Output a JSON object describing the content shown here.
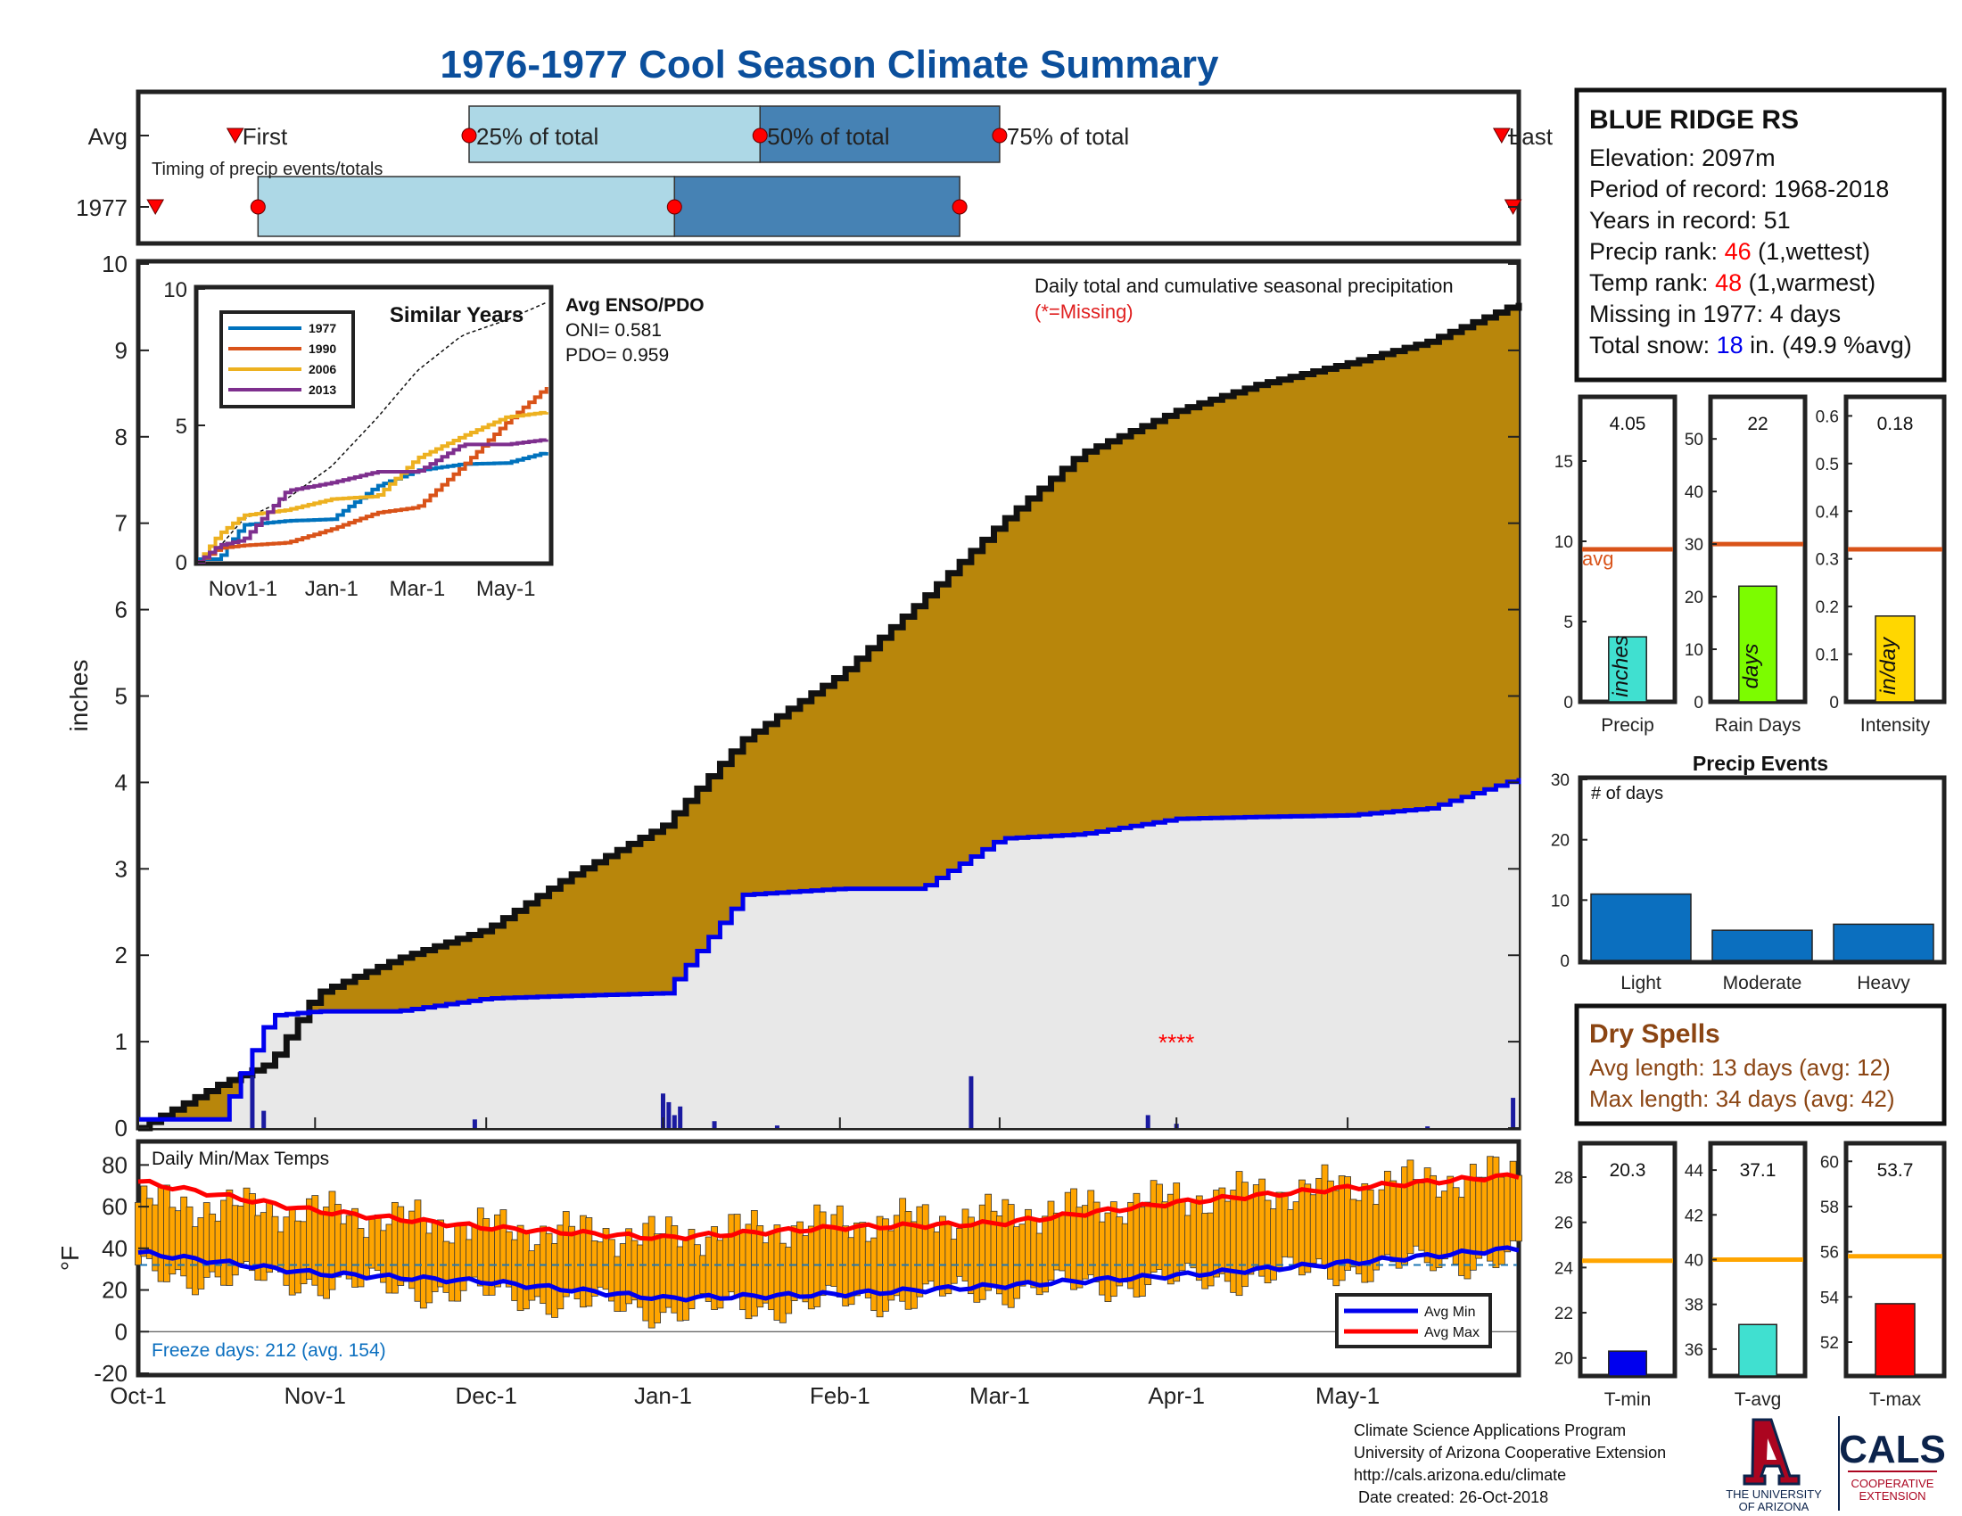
{
  "title": "1976-1977 Cool Season Climate Summary",
  "colors": {
    "title": "#0b4f9c",
    "precip_fill": "#b8860b",
    "avg_fill": "#e8e8e8",
    "avg_line": "#0000ee",
    "light_blue": "#add8e6",
    "steel_blue": "#4682b4",
    "bar_blue": "#0b6fbf",
    "red": "#ff0000",
    "orange_line": "#d95319",
    "gold": "#ffa500"
  },
  "timing": {
    "row_avg": "Avg",
    "row_year": "1977",
    "first_label": "First",
    "last_label": "Last",
    "p25_label": "25% of total",
    "p50_label": "50% of total",
    "p75_label": "75% of total",
    "caption": "Timing of precip events/totals",
    "avg": {
      "first": "1976-10-18",
      "p25": "1976-11-28",
      "p50": "1977-01-18",
      "p75": "1977-03-01",
      "last": "1977-05-28"
    },
    "year": {
      "first": "1976-10-04",
      "p25": "1976-10-22",
      "p50": "1977-01-03",
      "p75": "1977-02-22",
      "last": "1977-05-30"
    }
  },
  "main": {
    "ylabel": "inches",
    "yticks": [
      "0",
      "1",
      "2",
      "3",
      "4",
      "5",
      "6",
      "7",
      "8",
      "9",
      "10"
    ],
    "xticks": [
      "Oct-1",
      "Nov-1",
      "Dec-1",
      "Jan-1",
      "Feb-1",
      "Mar-1",
      "Apr-1",
      "May-1"
    ],
    "note": "Daily total and cumulative seasonal precipitation",
    "missing_note": "(*=Missing)",
    "missing_marker": "****",
    "missing_date": "1977-04-01",
    "enso_title": "Avg ENSO/PDO",
    "oni": "ONI= 0.581",
    "pdo": "PDO= 0.959"
  },
  "chart_data": [
    {
      "type": "area",
      "title": "Daily total and cumulative seasonal precipitation",
      "xlabel": "",
      "ylabel": "inches",
      "ylim": [
        0,
        10
      ],
      "x": [
        "1976-10-01",
        "1976-10-15",
        "1976-10-24",
        "1976-11-01",
        "1976-11-15",
        "1976-12-01",
        "1976-12-15",
        "1977-01-01",
        "1977-01-15",
        "1977-02-01",
        "1977-02-15",
        "1977-03-01",
        "1977-03-15",
        "1977-04-01",
        "1977-04-15",
        "1977-05-01",
        "1977-05-15",
        "1977-05-31"
      ],
      "series": [
        {
          "name": "Avg",
          "values": [
            0.0,
            0.5,
            0.75,
            1.55,
            1.95,
            2.3,
            2.9,
            3.5,
            4.5,
            5.25,
            6.1,
            7.0,
            7.8,
            8.3,
            8.6,
            8.85,
            9.1,
            9.55
          ]
        },
        {
          "name": "1977",
          "values": [
            0.1,
            0.1,
            1.3,
            1.35,
            1.35,
            1.5,
            1.53,
            1.56,
            2.7,
            2.77,
            2.77,
            3.35,
            3.4,
            3.58,
            3.6,
            3.62,
            3.7,
            4.05
          ]
        }
      ],
      "daily_bars": [
        {
          "date": "1976-10-21",
          "value": 0.6
        },
        {
          "date": "1976-10-23",
          "value": 0.2
        },
        {
          "date": "1976-11-29",
          "value": 0.1
        },
        {
          "date": "1977-01-01",
          "value": 0.4
        },
        {
          "date": "1977-01-02",
          "value": 0.3
        },
        {
          "date": "1977-01-03",
          "value": 0.15
        },
        {
          "date": "1977-01-04",
          "value": 0.25
        },
        {
          "date": "1977-01-10",
          "value": 0.08
        },
        {
          "date": "1977-01-21",
          "value": 0.03
        },
        {
          "date": "1977-02-24",
          "value": 0.6
        },
        {
          "date": "1977-03-27",
          "value": 0.15
        },
        {
          "date": "1977-04-01",
          "value": 0.05
        },
        {
          "date": "1977-05-15",
          "value": 0.02
        },
        {
          "date": "1977-05-30",
          "value": 0.35
        }
      ]
    },
    {
      "type": "line",
      "title": "Similar Years",
      "x": [
        "1976-10-01",
        "1976-10-15",
        "1976-11-01",
        "1976-12-01",
        "1977-01-01",
        "1977-02-01",
        "1977-03-01",
        "1977-04-01",
        "1977-05-01",
        "1977-05-31"
      ],
      "ylim": [
        0,
        10
      ],
      "series": [
        {
          "name": "1977",
          "values": [
            0.1,
            0.1,
            1.35,
            1.5,
            1.56,
            2.77,
            3.35,
            3.58,
            3.62,
            4.05
          ]
        },
        {
          "name": "1990",
          "values": [
            0.0,
            0.5,
            0.6,
            0.7,
            1.2,
            1.8,
            2.0,
            3.5,
            5.1,
            6.5
          ]
        },
        {
          "name": "2006",
          "values": [
            0.0,
            1.0,
            1.7,
            1.9,
            2.3,
            2.4,
            3.8,
            4.6,
            5.3,
            5.5
          ]
        },
        {
          "name": "2013",
          "values": [
            0.0,
            0.6,
            0.8,
            2.6,
            2.9,
            3.3,
            3.3,
            4.3,
            4.3,
            4.5
          ]
        }
      ],
      "avg_values": [
        0.0,
        0.5,
        1.55,
        2.3,
        3.5,
        5.25,
        7.0,
        8.3,
        8.85,
        9.55
      ],
      "xticks": [
        "Nov1-1",
        "Jan-1",
        "Mar-1",
        "May-1"
      ],
      "yticks": [
        "0",
        "5",
        "10"
      ]
    },
    {
      "type": "bar",
      "title": "Precip",
      "categories": [
        "Precip"
      ],
      "values": [
        4.05
      ],
      "avg": 9.5,
      "ylim": [
        0,
        19
      ],
      "value_label": "4.05",
      "unit_label": "inches",
      "avg_label": "avg",
      "yticks": [
        "0",
        "5",
        "10",
        "15"
      ]
    },
    {
      "type": "bar",
      "title": "Rain Days",
      "categories": [
        "Rain Days"
      ],
      "values": [
        22
      ],
      "avg": 30,
      "ylim": [
        0,
        58
      ],
      "value_label": "22",
      "unit_label": "days",
      "yticks": [
        "0",
        "10",
        "20",
        "30",
        "40",
        "50"
      ]
    },
    {
      "type": "bar",
      "title": "Intensity",
      "categories": [
        "Intensity"
      ],
      "values": [
        0.18
      ],
      "avg": 0.32,
      "ylim": [
        0,
        0.64
      ],
      "value_label": "0.18",
      "unit_label": "in/day",
      "yticks": [
        "0",
        "0.1",
        "0.2",
        "0.3",
        "0.4",
        "0.5",
        "0.6"
      ]
    },
    {
      "type": "bar",
      "title": "Precip Events",
      "categories": [
        "Light",
        "Moderate",
        "Heavy"
      ],
      "values": [
        11,
        5,
        6
      ],
      "ylim": [
        0,
        30
      ],
      "ylabel": "# of days",
      "yticks": [
        "0",
        "10",
        "20",
        "30"
      ]
    },
    {
      "type": "bar",
      "title": "Daily Min/Max Temps",
      "ylabel": "°F",
      "ylim": [
        -20,
        90
      ],
      "yticks": [
        "80",
        "60",
        "40",
        "20",
        "0",
        "-20"
      ],
      "xticks": [
        "Oct-1",
        "Nov-1",
        "Dec-1",
        "Jan-1",
        "Feb-1",
        "Mar-1",
        "Apr-1",
        "May-1"
      ],
      "x": [
        "1976-10-01",
        "1976-11-01",
        "1976-12-01",
        "1977-01-01",
        "1977-02-01",
        "1977-03-01",
        "1977-04-01",
        "1977-05-01",
        "1977-05-31"
      ],
      "series": [
        {
          "name": "Avg Min",
          "values": [
            38,
            28,
            24,
            16,
            18,
            22,
            27,
            33,
            40
          ]
        },
        {
          "name": "Avg Max",
          "values": [
            72,
            58,
            50,
            45,
            50,
            52,
            62,
            69,
            75
          ]
        }
      ],
      "daily_highs_approx": [
        62,
        58,
        50,
        46,
        52,
        56,
        64,
        70,
        76
      ],
      "daily_lows_approx": [
        28,
        24,
        18,
        10,
        14,
        20,
        24,
        30,
        36
      ],
      "freeze_line": 32,
      "freeze_label": "Freeze days: 212 (avg. 154)"
    },
    {
      "type": "bar",
      "title": "T-min",
      "categories": [
        "T-min"
      ],
      "values": [
        20.3
      ],
      "avg": 24.3,
      "ylim": [
        19.2,
        29.5
      ],
      "value_label": "20.3",
      "yticks": [
        "20",
        "22",
        "24",
        "26",
        "28"
      ]
    },
    {
      "type": "bar",
      "title": "T-avg",
      "categories": [
        "T-avg"
      ],
      "values": [
        37.1
      ],
      "avg": 40.0,
      "ylim": [
        34.8,
        45.2
      ],
      "value_label": "37.1",
      "yticks": [
        "36",
        "38",
        "40",
        "42",
        "44"
      ]
    },
    {
      "type": "bar",
      "title": "T-max",
      "categories": [
        "T-max"
      ],
      "values": [
        53.7
      ],
      "avg": 55.8,
      "ylim": [
        50.5,
        60.8
      ],
      "value_label": "53.7",
      "yticks": [
        "52",
        "54",
        "56",
        "58",
        "60"
      ]
    }
  ],
  "station": {
    "name": "BLUE RIDGE RS",
    "elevation": "Elevation: 2097m",
    "period": "Period of record: 1968-2018",
    "years": "Years in record: 51",
    "precip_rank_pre": "Precip rank: ",
    "precip_rank_val": "46",
    "precip_rank_post": " (1,wettest)",
    "temp_rank_pre": "Temp rank: ",
    "temp_rank_val": "48",
    "temp_rank_post": " (1,warmest)",
    "missing": "Missing in 1977: 4 days",
    "snow_pre": "Total snow: ",
    "snow_val": "18",
    "snow_post": " in. (49.9 %avg)"
  },
  "dry_spells": {
    "title": "Dry Spells",
    "avg_length": "Avg length: 13 days (avg: 12)",
    "max_length": "Max length: 34 days (avg: 42)"
  },
  "footer": {
    "line1": "Climate Science Applications Program",
    "line2": "University of Arizona Cooperative Extension",
    "line3": "http://cals.arizona.edu/climate",
    "line4": "Date created: 26-Oct-2018",
    "ua_line1": "THE UNIVERSITY",
    "ua_line2": "OF ARIZONA",
    "cals": "CALS",
    "cals_sub1": "COOPERATIVE",
    "cals_sub2": "EXTENSION"
  }
}
